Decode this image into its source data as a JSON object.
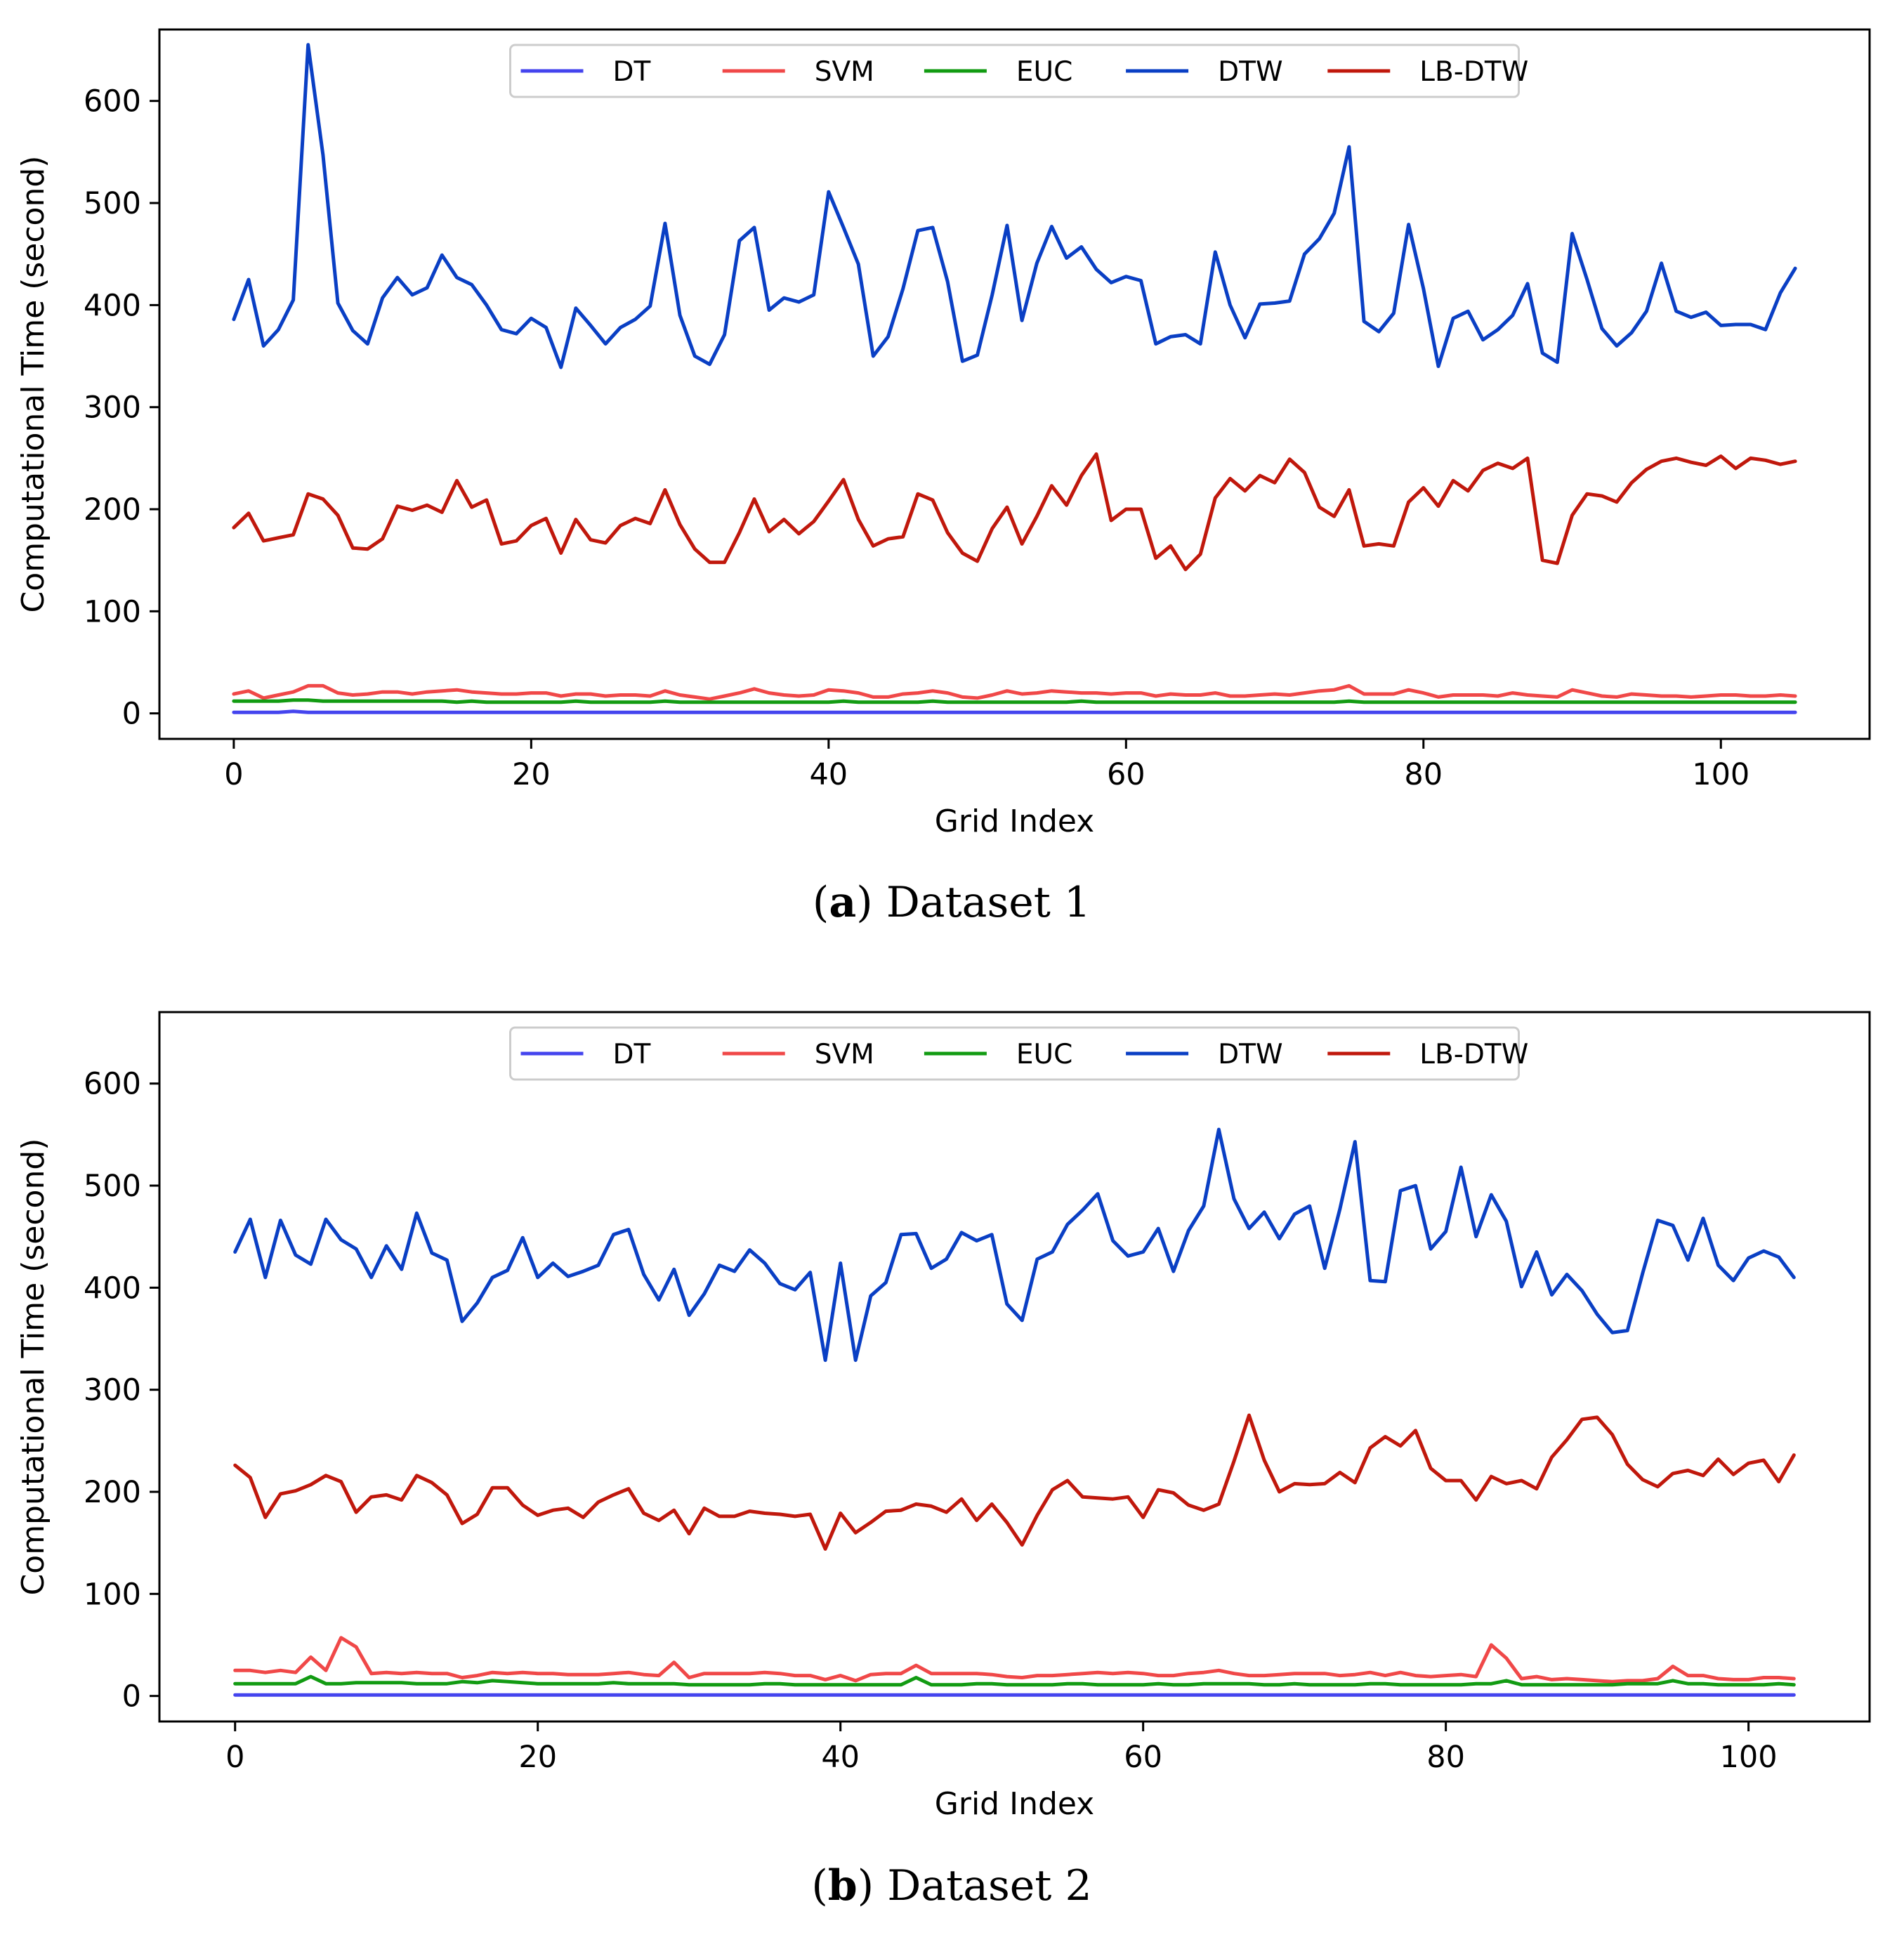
{
  "figures": [
    {
      "letter": "a",
      "caption": "Dataset 1"
    },
    {
      "letter": "b",
      "caption": "Dataset 2"
    }
  ],
  "colors": {
    "DT": "#4444ee",
    "SVM": "#f04848",
    "EUC": "#129b12",
    "DTW": "#0a3fc4",
    "LB-DTW": "#c0180c"
  },
  "chart_data": [
    {
      "type": "line",
      "title": "",
      "xlabel": "Grid Index",
      "ylabel": "Computational Time (second)",
      "xlim": [
        -5,
        110
      ],
      "ylim": [
        -25,
        670
      ],
      "xticks": [
        0,
        20,
        40,
        60,
        80,
        100
      ],
      "yticks": [
        0,
        100,
        200,
        300,
        400,
        500,
        600
      ],
      "legend": [
        "DT",
        "SVM",
        "EUC",
        "DTW",
        "LB-DTW"
      ],
      "legend_position": "top-center",
      "series": [
        {
          "name": "DT",
          "values": [
            1,
            1,
            1,
            1,
            2,
            1,
            1,
            1,
            1,
            1,
            1,
            1,
            1,
            1,
            1,
            1,
            1,
            1,
            1,
            1,
            1,
            1,
            1,
            1,
            1,
            1,
            1,
            1,
            1,
            1,
            1,
            1,
            1,
            1,
            1,
            1,
            1,
            1,
            1,
            1,
            1,
            1,
            1,
            1,
            1,
            1,
            1,
            1,
            1,
            1,
            1,
            1,
            1,
            1,
            1,
            1,
            1,
            1,
            1,
            1,
            1,
            1,
            1,
            1,
            1,
            1,
            1,
            1,
            1,
            1,
            1,
            1,
            1,
            1,
            1,
            1,
            1,
            1,
            1,
            1,
            1,
            1,
            1,
            1,
            1,
            1,
            1,
            1,
            1,
            1,
            1,
            1,
            1,
            1,
            1,
            1,
            1,
            1,
            1,
            1,
            1,
            1,
            1,
            1,
            1,
            1
          ]
        },
        {
          "name": "SVM",
          "values": [
            19,
            22,
            15,
            18,
            21,
            27,
            27,
            20,
            18,
            19,
            21,
            21,
            19,
            21,
            22,
            23,
            21,
            20,
            19,
            19,
            20,
            20,
            17,
            19,
            19,
            17,
            18,
            18,
            17,
            22,
            18,
            16,
            14,
            17,
            20,
            24,
            20,
            18,
            17,
            18,
            23,
            22,
            20,
            16,
            16,
            19,
            20,
            22,
            20,
            16,
            15,
            18,
            22,
            19,
            20,
            22,
            21,
            20,
            20,
            19,
            20,
            20,
            17,
            19,
            18,
            18,
            20,
            17,
            17,
            18,
            19,
            18,
            20,
            22,
            23,
            27,
            19,
            19,
            19,
            23,
            20,
            16,
            18,
            18,
            18,
            17,
            20,
            18,
            17,
            16,
            23,
            20,
            17,
            16,
            19,
            18,
            17,
            17,
            16,
            17,
            18,
            18,
            17,
            17,
            18,
            17
          ]
        },
        {
          "name": "EUC",
          "values": [
            12,
            12,
            12,
            12,
            13,
            13,
            12,
            12,
            12,
            12,
            12,
            12,
            12,
            12,
            12,
            11,
            12,
            11,
            11,
            11,
            11,
            11,
            11,
            12,
            11,
            11,
            11,
            11,
            11,
            12,
            11,
            11,
            11,
            11,
            11,
            11,
            11,
            11,
            11,
            11,
            11,
            12,
            11,
            11,
            11,
            11,
            11,
            12,
            11,
            11,
            11,
            11,
            11,
            11,
            11,
            11,
            11,
            12,
            11,
            11,
            11,
            11,
            11,
            11,
            11,
            11,
            11,
            11,
            11,
            11,
            11,
            11,
            11,
            11,
            11,
            12,
            11,
            11,
            11,
            11,
            11,
            11,
            11,
            11,
            11,
            11,
            11,
            11,
            11,
            11,
            11,
            11,
            11,
            11,
            11,
            11,
            11,
            11,
            11,
            11,
            11,
            11,
            11,
            11,
            11,
            11
          ]
        },
        {
          "name": "DTW",
          "values": [
            386,
            425,
            360,
            376,
            405,
            655,
            547,
            402,
            375,
            362,
            407,
            427,
            410,
            417,
            449,
            427,
            420,
            400,
            376,
            372,
            387,
            378,
            339,
            397,
            380,
            362,
            378,
            386,
            399,
            480,
            390,
            350,
            342,
            371,
            463,
            476,
            395,
            407,
            403,
            410,
            511,
            476,
            440,
            350,
            369,
            416,
            473,
            476,
            423,
            345,
            351,
            410,
            478,
            385,
            441,
            477,
            446,
            457,
            435,
            422,
            428,
            424,
            362,
            369,
            371,
            362,
            452,
            400,
            368,
            401,
            402,
            404,
            450,
            465,
            490,
            555,
            384,
            374,
            392,
            479,
            416,
            340,
            387,
            394,
            366,
            376,
            390,
            421,
            353,
            344,
            470,
            425,
            377,
            360,
            373,
            394,
            441,
            394,
            388,
            393,
            380,
            381,
            381,
            376,
            412,
            436
          ]
        },
        {
          "name": "LB-DTW",
          "values": [
            182,
            196,
            169,
            172,
            175,
            215,
            210,
            194,
            162,
            161,
            171,
            203,
            199,
            204,
            197,
            228,
            202,
            209,
            166,
            169,
            184,
            191,
            157,
            190,
            170,
            167,
            184,
            191,
            186,
            219,
            185,
            161,
            148,
            148,
            177,
            210,
            178,
            190,
            176,
            188,
            208,
            229,
            190,
            164,
            171,
            173,
            215,
            209,
            177,
            157,
            149,
            181,
            202,
            166,
            193,
            223,
            204,
            233,
            254,
            189,
            200,
            200,
            152,
            164,
            141,
            156,
            211,
            230,
            218,
            233,
            226,
            249,
            236,
            202,
            193,
            219,
            164,
            166,
            164,
            207,
            221,
            203,
            228,
            218,
            238,
            245,
            240,
            250,
            150,
            147,
            194,
            215,
            213,
            207,
            226,
            239,
            247,
            250,
            246,
            243,
            252,
            240,
            250,
            248,
            244,
            247
          ]
        }
      ]
    },
    {
      "type": "line",
      "title": "",
      "xlabel": "Grid Index",
      "ylabel": "Computational Time (second)",
      "xlim": [
        -5,
        108
      ],
      "ylim": [
        -25,
        670
      ],
      "xticks": [
        0,
        20,
        40,
        60,
        80,
        100
      ],
      "yticks": [
        0,
        100,
        200,
        300,
        400,
        500,
        600
      ],
      "legend": [
        "DT",
        "SVM",
        "EUC",
        "DTW",
        "LB-DTW"
      ],
      "legend_position": "top-center",
      "series": [
        {
          "name": "DT",
          "values": [
            1,
            1,
            1,
            1,
            1,
            1,
            1,
            1,
            1,
            1,
            1,
            1,
            1,
            1,
            1,
            1,
            1,
            1,
            1,
            1,
            1,
            1,
            1,
            1,
            1,
            1,
            1,
            1,
            1,
            1,
            1,
            1,
            1,
            1,
            1,
            1,
            1,
            1,
            1,
            1,
            1,
            1,
            1,
            1,
            1,
            1,
            1,
            1,
            1,
            1,
            1,
            1,
            1,
            1,
            1,
            1,
            1,
            1,
            1,
            1,
            1,
            1,
            1,
            1,
            1,
            1,
            1,
            1,
            1,
            1,
            1,
            1,
            1,
            1,
            1,
            1,
            1,
            1,
            1,
            1,
            1,
            1,
            1,
            1,
            1,
            1,
            1,
            1,
            1,
            1,
            1,
            1,
            1,
            1,
            1,
            1,
            1,
            1,
            1,
            1,
            1,
            1,
            1,
            1
          ]
        },
        {
          "name": "SVM",
          "values": [
            25,
            25,
            23,
            25,
            23,
            38,
            25,
            57,
            48,
            22,
            23,
            22,
            23,
            22,
            22,
            18,
            20,
            23,
            22,
            23,
            22,
            22,
            21,
            21,
            21,
            22,
            23,
            21,
            20,
            33,
            18,
            22,
            22,
            22,
            22,
            23,
            22,
            20,
            20,
            16,
            20,
            15,
            21,
            22,
            22,
            30,
            22,
            22,
            22,
            22,
            21,
            19,
            18,
            20,
            20,
            21,
            22,
            23,
            22,
            23,
            22,
            20,
            20,
            22,
            23,
            25,
            22,
            20,
            20,
            21,
            22,
            22,
            22,
            20,
            21,
            23,
            20,
            23,
            20,
            19,
            20,
            21,
            19,
            50,
            37,
            17,
            19,
            16,
            17,
            16,
            15,
            14,
            15,
            15,
            17,
            29,
            20,
            20,
            17,
            16,
            16,
            18,
            18,
            17
          ]
        },
        {
          "name": "EUC",
          "values": [
            12,
            12,
            12,
            12,
            12,
            19,
            12,
            12,
            13,
            13,
            13,
            13,
            12,
            12,
            12,
            14,
            13,
            15,
            14,
            13,
            12,
            12,
            12,
            12,
            12,
            13,
            12,
            12,
            12,
            12,
            11,
            11,
            11,
            11,
            11,
            12,
            12,
            11,
            11,
            11,
            11,
            11,
            11,
            11,
            11,
            18,
            11,
            11,
            11,
            12,
            12,
            11,
            11,
            11,
            11,
            12,
            12,
            11,
            11,
            11,
            11,
            12,
            11,
            11,
            12,
            12,
            12,
            12,
            11,
            11,
            12,
            11,
            11,
            11,
            11,
            12,
            12,
            11,
            11,
            11,
            11,
            11,
            12,
            12,
            15,
            11,
            11,
            11,
            11,
            11,
            11,
            11,
            12,
            12,
            12,
            15,
            12,
            12,
            11,
            11,
            11,
            11,
            12,
            11
          ]
        },
        {
          "name": "DTW",
          "values": [
            435,
            467,
            410,
            466,
            432,
            423,
            467,
            447,
            438,
            410,
            441,
            418,
            473,
            434,
            427,
            367,
            385,
            410,
            417,
            449,
            410,
            424,
            411,
            416,
            422,
            452,
            457,
            413,
            388,
            418,
            373,
            394,
            422,
            416,
            437,
            424,
            404,
            398,
            415,
            329,
            424,
            329,
            392,
            405,
            452,
            453,
            419,
            428,
            454,
            446,
            452,
            384,
            368,
            428,
            435,
            462,
            476,
            492,
            446,
            431,
            435,
            458,
            416,
            456,
            480,
            555,
            487,
            458,
            474,
            448,
            472,
            480,
            419,
            477,
            543,
            407,
            406,
            495,
            500,
            438,
            455,
            518,
            450,
            491,
            465,
            401,
            435,
            393,
            413,
            397,
            374,
            356,
            358,
            414,
            466,
            461,
            427,
            468,
            422,
            407,
            429,
            436,
            430,
            410
          ]
        },
        {
          "name": "LB-DTW",
          "values": [
            226,
            214,
            175,
            198,
            201,
            207,
            216,
            210,
            180,
            195,
            197,
            192,
            216,
            209,
            197,
            169,
            178,
            204,
            204,
            187,
            177,
            182,
            184,
            175,
            190,
            197,
            203,
            179,
            172,
            182,
            159,
            184,
            176,
            176,
            181,
            179,
            178,
            176,
            178,
            144,
            179,
            160,
            170,
            181,
            182,
            188,
            186,
            180,
            193,
            172,
            188,
            170,
            148,
            177,
            202,
            211,
            195,
            194,
            193,
            195,
            175,
            202,
            199,
            187,
            182,
            188,
            230,
            275,
            231,
            200,
            208,
            207,
            208,
            219,
            209,
            243,
            254,
            245,
            260,
            223,
            211,
            211,
            192,
            215,
            208,
            211,
            203,
            234,
            251,
            271,
            273,
            256,
            227,
            212,
            205,
            218,
            221,
            216,
            232,
            217,
            228,
            231,
            210,
            236
          ]
        }
      ]
    }
  ]
}
